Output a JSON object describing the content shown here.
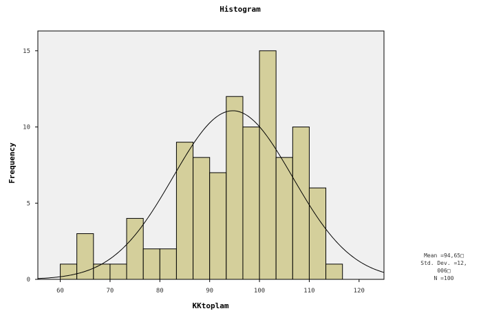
{
  "chart_data": {
    "type": "bar",
    "title": "Histogram",
    "xlabel": "KKtoplam",
    "ylabel": "Frequency",
    "bins": [
      {
        "start": 60,
        "end": 63.33,
        "count": 1
      },
      {
        "start": 63.33,
        "end": 66.67,
        "count": 3
      },
      {
        "start": 66.67,
        "end": 70,
        "count": 1
      },
      {
        "start": 70,
        "end": 73.33,
        "count": 1
      },
      {
        "start": 73.33,
        "end": 76.67,
        "count": 4
      },
      {
        "start": 76.67,
        "end": 80,
        "count": 2
      },
      {
        "start": 80,
        "end": 83.33,
        "count": 2
      },
      {
        "start": 83.33,
        "end": 86.67,
        "count": 9
      },
      {
        "start": 86.67,
        "end": 90,
        "count": 8
      },
      {
        "start": 90,
        "end": 93.33,
        "count": 7
      },
      {
        "start": 93.33,
        "end": 96.67,
        "count": 12
      },
      {
        "start": 96.67,
        "end": 100,
        "count": 10
      },
      {
        "start": 100,
        "end": 103.33,
        "count": 15
      },
      {
        "start": 103.33,
        "end": 106.67,
        "count": 8
      },
      {
        "start": 106.67,
        "end": 110,
        "count": 10
      },
      {
        "start": 110,
        "end": 113.33,
        "count": 6
      },
      {
        "start": 113.33,
        "end": 116.67,
        "count": 1
      }
    ],
    "xlim": [
      55.5,
      125
    ],
    "ylim": [
      0,
      16.3
    ],
    "xticks": [
      60,
      70,
      80,
      90,
      100,
      110,
      120
    ],
    "yticks": [
      0,
      5,
      10,
      15
    ],
    "normal_curve": {
      "mean": 94.65,
      "sd": 12.006,
      "n": 100
    },
    "grid": false,
    "colors": {
      "bar_fill": "#d4cf9b",
      "bar_stroke": "#000000",
      "plot_bg": "#f0f0f0",
      "curve": "#000000"
    },
    "stats_lines": [
      "Mean =94,65□",
      "Std. Dev. =12,",
      "006□",
      "N =100"
    ]
  }
}
